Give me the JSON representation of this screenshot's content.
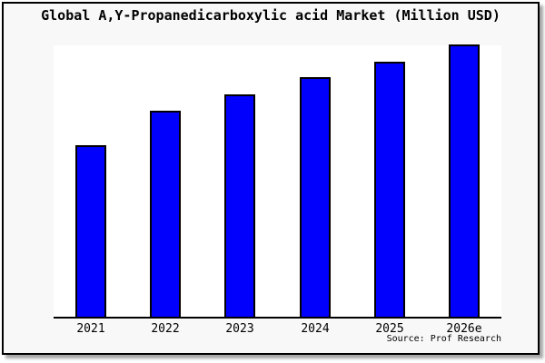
{
  "window": {
    "background_color": "#f8f8f8",
    "border_color": "#000000",
    "plot_background_color": "#ffffff"
  },
  "title": "Global A,Y-Propanedicarboxylic acid Market (Million USD)",
  "source": "Source: Prof Research",
  "chart_data": {
    "type": "bar",
    "title": "Global A,Y-Propanedicarboxylic acid Market (Million USD)",
    "categories": [
      "2021",
      "2022",
      "2023",
      "2024",
      "2025",
      "2026e"
    ],
    "values": [
      100,
      120,
      130,
      140,
      149,
      159
    ],
    "xlabel": "",
    "ylabel": "",
    "ylim": [
      0,
      160
    ],
    "grid": false,
    "legend": "none",
    "y_axis_ticks_visible": false,
    "bar_color": "#0000fc",
    "bar_border_color": "#000000",
    "note": "No y-axis scale shown in image; values are relative heights with 2021 = 100"
  }
}
